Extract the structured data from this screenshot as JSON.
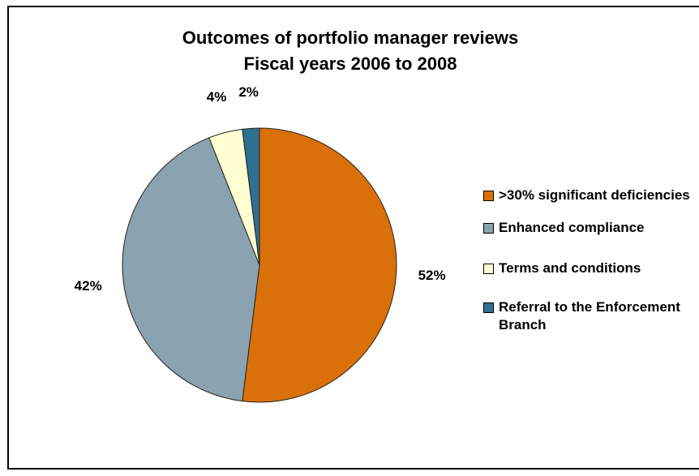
{
  "chart_data": {
    "type": "pie",
    "title": "Outcomes of portfolio manager reviews",
    "subtitle": "Fiscal years 2006 to 2008",
    "categories": [
      ">30% significant deficiencies",
      "Enhanced compliance",
      "Terms and conditions",
      "Referral to the Enforcement Branch"
    ],
    "values": [
      52,
      42,
      4,
      2
    ],
    "value_labels": [
      "52%",
      "42%",
      "4%",
      "2%"
    ],
    "colors": [
      "#d9700a",
      "#8ba2b0",
      "#ffffd2",
      "#2e7092"
    ],
    "legend": "right"
  }
}
